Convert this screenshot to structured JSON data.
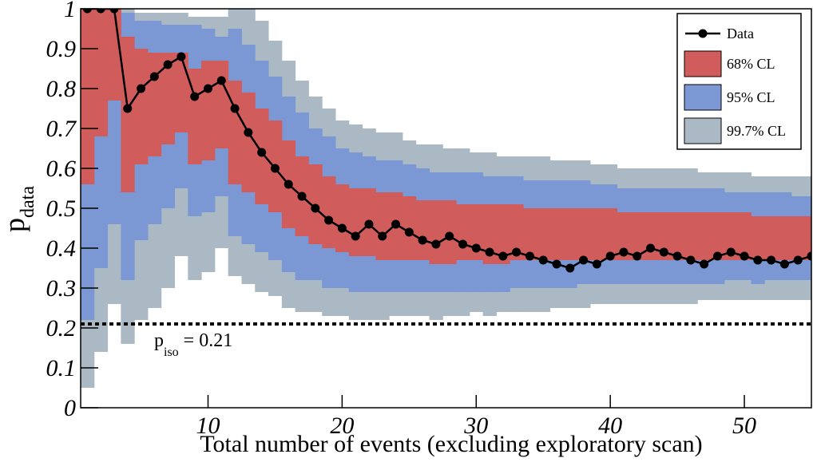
{
  "chart_data": {
    "type": "band-line",
    "x_label": "Total number of events (excluding exploratory scan)",
    "y_label": {
      "main": "p",
      "sub": "data"
    },
    "xlim": [
      0.5,
      55
    ],
    "ylim": [
      0,
      1
    ],
    "xticks": [
      10,
      20,
      30,
      40,
      50
    ],
    "yticks": [
      0,
      0.1,
      0.2,
      0.3,
      0.4,
      0.5,
      0.6,
      0.7,
      0.8,
      0.9,
      1
    ],
    "x": [
      1,
      2,
      3,
      4,
      5,
      6,
      7,
      8,
      9,
      10,
      11,
      12,
      13,
      14,
      15,
      16,
      17,
      18,
      19,
      20,
      21,
      22,
      23,
      24,
      25,
      26,
      27,
      28,
      29,
      30,
      31,
      32,
      33,
      34,
      35,
      36,
      37,
      38,
      39,
      40,
      41,
      42,
      43,
      44,
      45,
      46,
      47,
      48,
      49,
      50,
      51,
      52,
      53,
      54,
      55
    ],
    "bands": [
      {
        "name": "99.7% CL",
        "color": "#aab9c3",
        "lower": [
          0.05,
          0.14,
          0.26,
          0.16,
          0.22,
          0.25,
          0.3,
          0.38,
          0.32,
          0.34,
          0.4,
          0.33,
          0.31,
          0.29,
          0.28,
          0.25,
          0.24,
          0.24,
          0.23,
          0.23,
          0.22,
          0.22,
          0.22,
          0.23,
          0.23,
          0.23,
          0.22,
          0.23,
          0.23,
          0.24,
          0.23,
          0.24,
          0.24,
          0.24,
          0.24,
          0.25,
          0.25,
          0.25,
          0.26,
          0.26,
          0.26,
          0.26,
          0.26,
          0.26,
          0.26,
          0.26,
          0.27,
          0.27,
          0.27,
          0.27,
          0.27,
          0.27,
          0.27,
          0.27,
          0.27
        ],
        "upper": [
          1,
          1,
          1,
          1,
          0.99,
          0.99,
          0.99,
          0.99,
          0.98,
          0.98,
          0.98,
          1,
          1,
          0.97,
          0.92,
          0.87,
          0.82,
          0.78,
          0.75,
          0.72,
          0.71,
          0.7,
          0.69,
          0.69,
          0.67,
          0.66,
          0.66,
          0.65,
          0.65,
          0.64,
          0.64,
          0.63,
          0.63,
          0.63,
          0.63,
          0.62,
          0.62,
          0.62,
          0.61,
          0.61,
          0.6,
          0.6,
          0.6,
          0.6,
          0.6,
          0.6,
          0.59,
          0.59,
          0.59,
          0.59,
          0.58,
          0.58,
          0.58,
          0.58,
          0.58
        ]
      },
      {
        "name": "95% CL",
        "color": "#7b98d4",
        "lower": [
          0.22,
          0.35,
          0.46,
          0.32,
          0.42,
          0.46,
          0.5,
          0.55,
          0.48,
          0.49,
          0.53,
          0.43,
          0.41,
          0.39,
          0.37,
          0.34,
          0.32,
          0.32,
          0.3,
          0.3,
          0.29,
          0.29,
          0.29,
          0.29,
          0.29,
          0.29,
          0.29,
          0.29,
          0.29,
          0.29,
          0.29,
          0.29,
          0.3,
          0.3,
          0.3,
          0.3,
          0.3,
          0.31,
          0.31,
          0.31,
          0.31,
          0.31,
          0.31,
          0.31,
          0.31,
          0.31,
          0.31,
          0.31,
          0.32,
          0.32,
          0.31,
          0.32,
          0.32,
          0.32,
          0.32
        ],
        "upper": [
          1,
          1,
          1,
          0.99,
          0.97,
          0.97,
          0.96,
          0.96,
          0.96,
          0.95,
          0.93,
          0.95,
          0.91,
          0.87,
          0.83,
          0.78,
          0.74,
          0.7,
          0.68,
          0.65,
          0.64,
          0.63,
          0.62,
          0.62,
          0.61,
          0.6,
          0.59,
          0.59,
          0.59,
          0.59,
          0.58,
          0.58,
          0.58,
          0.57,
          0.57,
          0.57,
          0.57,
          0.57,
          0.56,
          0.56,
          0.55,
          0.55,
          0.55,
          0.55,
          0.55,
          0.55,
          0.55,
          0.55,
          0.54,
          0.54,
          0.54,
          0.54,
          0.54,
          0.53,
          0.53
        ]
      },
      {
        "name": "68% CL",
        "color": "#d15c5c",
        "lower": [
          0.56,
          0.68,
          0.77,
          0.54,
          0.61,
          0.63,
          0.66,
          0.69,
          0.61,
          0.62,
          0.65,
          0.56,
          0.54,
          0.51,
          0.49,
          0.45,
          0.43,
          0.41,
          0.4,
          0.39,
          0.38,
          0.38,
          0.37,
          0.37,
          0.37,
          0.37,
          0.36,
          0.36,
          0.37,
          0.37,
          0.36,
          0.36,
          0.37,
          0.37,
          0.37,
          0.37,
          0.37,
          0.37,
          0.37,
          0.37,
          0.37,
          0.37,
          0.37,
          0.37,
          0.37,
          0.37,
          0.37,
          0.37,
          0.37,
          0.37,
          0.37,
          0.37,
          0.37,
          0.37,
          0.37
        ],
        "upper": [
          1,
          1,
          1,
          0.93,
          0.9,
          0.89,
          0.89,
          0.89,
          0.85,
          0.87,
          0.87,
          0.82,
          0.79,
          0.75,
          0.72,
          0.67,
          0.63,
          0.61,
          0.58,
          0.56,
          0.55,
          0.55,
          0.54,
          0.54,
          0.53,
          0.52,
          0.52,
          0.52,
          0.51,
          0.51,
          0.51,
          0.51,
          0.51,
          0.5,
          0.5,
          0.5,
          0.5,
          0.5,
          0.5,
          0.5,
          0.49,
          0.49,
          0.49,
          0.49,
          0.49,
          0.49,
          0.49,
          0.49,
          0.49,
          0.49,
          0.48,
          0.48,
          0.48,
          0.48,
          0.48
        ]
      }
    ],
    "series": [
      {
        "name": "Data",
        "color": "#000000",
        "values": [
          1,
          1,
          1,
          0.75,
          0.8,
          0.83,
          0.86,
          0.88,
          0.78,
          0.8,
          0.82,
          0.75,
          0.69,
          0.64,
          0.6,
          0.56,
          0.53,
          0.5,
          0.47,
          0.45,
          0.43,
          0.46,
          0.43,
          0.46,
          0.44,
          0.42,
          0.41,
          0.43,
          0.41,
          0.4,
          0.39,
          0.38,
          0.39,
          0.38,
          0.37,
          0.36,
          0.35,
          0.37,
          0.36,
          0.38,
          0.39,
          0.38,
          0.4,
          0.39,
          0.38,
          0.37,
          0.36,
          0.38,
          0.39,
          0.38,
          0.37,
          0.37,
          0.36,
          0.37,
          0.38
        ]
      }
    ],
    "hline": {
      "value": 0.21,
      "label": {
        "main": "p",
        "sub": "iso",
        "rest": "= 0.21"
      }
    },
    "legend": "top-right"
  }
}
